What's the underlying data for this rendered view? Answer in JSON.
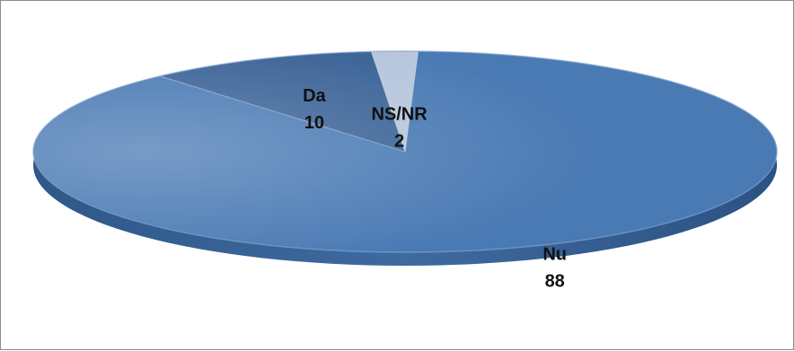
{
  "chart_data": {
    "type": "pie",
    "style": "3d-tilted",
    "title": "",
    "slices": [
      {
        "label": "Nu",
        "value": 88,
        "color": "#4a7ab4"
      },
      {
        "label": "Da",
        "value": 10,
        "color": "#3b6397"
      },
      {
        "label": "NS/NR",
        "value": 2,
        "color": "#b7c6dc"
      }
    ],
    "legend": "none",
    "data_labels": "category-and-value"
  }
}
